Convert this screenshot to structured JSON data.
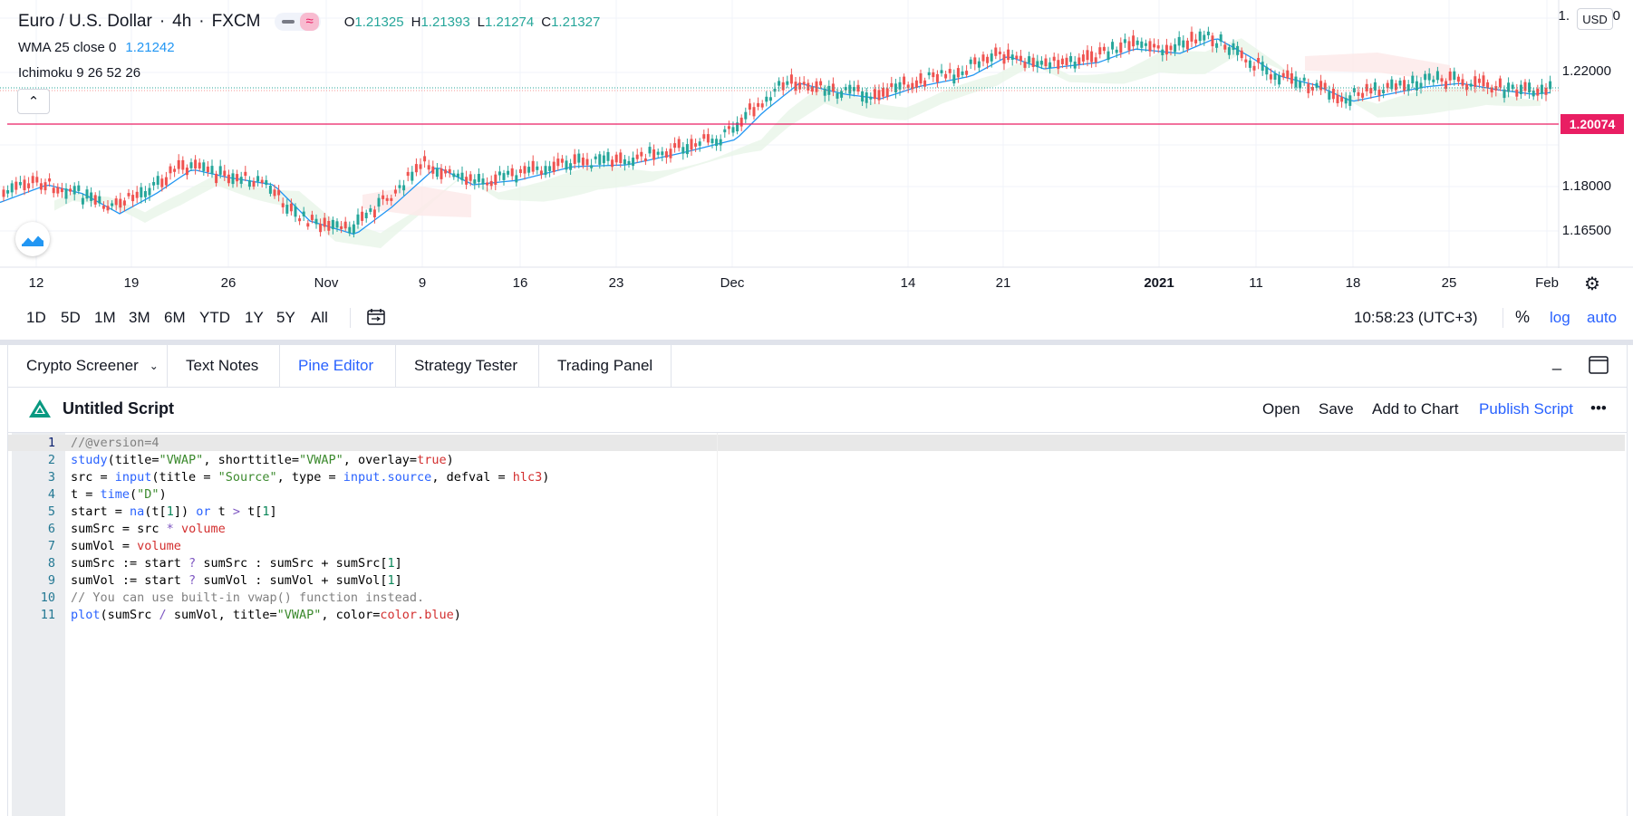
{
  "header": {
    "symbol": "Euro / U.S. Dollar",
    "interval": "4h",
    "exchange": "FXCM",
    "ohlc": [
      {
        "k": "O",
        "v": "1.21325"
      },
      {
        "k": "H",
        "v": "1.21393"
      },
      {
        "k": "L",
        "v": "1.21274"
      },
      {
        "k": "C",
        "v": "1.21327"
      }
    ],
    "indicators": [
      {
        "label": "WMA 25 close 0",
        "value": "1.21242"
      },
      {
        "label": "Ichimoku 9 26 52 26",
        "value": ""
      }
    ],
    "collapse_icon": "chevron-up-icon",
    "tv_logo": "tradingview-logo"
  },
  "price_axis": {
    "currency": "USD",
    "labels": [
      "1.22000",
      "1.18000",
      "1.16500"
    ],
    "top_label_partial": "1.",
    "top_label_end": "0",
    "alert_price": "1.20074",
    "alert_color": "#e91e63"
  },
  "time_axis": {
    "labels": [
      "12",
      "19",
      "26",
      "Nov",
      "9",
      "16",
      "23",
      "Dec",
      "14",
      "21",
      "2021",
      "11",
      "18",
      "25",
      "Feb"
    ],
    "settings_icon": "gear-icon"
  },
  "range_bar": {
    "ranges": [
      "1D",
      "5D",
      "1M",
      "3M",
      "6M",
      "YTD",
      "1Y",
      "5Y",
      "All"
    ],
    "date_range_icon": "calendar-range-icon",
    "clock": "10:58:23 (UTC+3)",
    "percent": "%",
    "log": "log",
    "auto": "auto"
  },
  "tabs": [
    {
      "label": "Crypto Screener",
      "dropdown": true
    },
    {
      "label": "Text Notes"
    },
    {
      "label": "Pine Editor",
      "active": true
    },
    {
      "label": "Strategy Tester"
    },
    {
      "label": "Trading Panel"
    }
  ],
  "window_controls": {
    "minimize": "_",
    "maximize_icon": "maximize-icon"
  },
  "script_bar": {
    "title": "Untitled Script",
    "logo": "pine-script-logo",
    "open": "Open",
    "save": "Save",
    "add_to_chart": "Add to Chart",
    "publish": "Publish Script",
    "more": "•••"
  },
  "code": {
    "lines": [
      [
        [
          "c",
          "//@version=4"
        ]
      ],
      [
        [
          "k",
          "study"
        ],
        [
          "t",
          "(title="
        ],
        [
          "s",
          "\"VWAP\""
        ],
        [
          "t",
          ", shorttitle="
        ],
        [
          "s",
          "\"VWAP\""
        ],
        [
          "t",
          ", overlay="
        ],
        [
          "r",
          "true"
        ],
        [
          "t",
          ")"
        ]
      ],
      [
        [
          "t",
          "src = "
        ],
        [
          "k",
          "input"
        ],
        [
          "t",
          "(title = "
        ],
        [
          "s",
          "\"Source\""
        ],
        [
          "t",
          ", type = "
        ],
        [
          "k",
          "input.source"
        ],
        [
          "t",
          ", defval = "
        ],
        [
          "r",
          "hlc3"
        ],
        [
          "t",
          ")"
        ]
      ],
      [
        [
          "t",
          "t = "
        ],
        [
          "k",
          "time"
        ],
        [
          "t",
          "("
        ],
        [
          "s",
          "\"D\""
        ],
        [
          "t",
          ")"
        ]
      ],
      [
        [
          "t",
          "start = "
        ],
        [
          "k",
          "na"
        ],
        [
          "t",
          "(t["
        ],
        [
          "n",
          "1"
        ],
        [
          "t",
          "]) "
        ],
        [
          "k",
          "or"
        ],
        [
          "t",
          " t "
        ],
        [
          "o",
          ">"
        ],
        [
          "t",
          " t["
        ],
        [
          "n",
          "1"
        ],
        [
          "t",
          "]"
        ]
      ],
      [
        [
          "t",
          "sumSrc = src "
        ],
        [
          "o",
          "*"
        ],
        [
          "t",
          " "
        ],
        [
          "r",
          "volume"
        ]
      ],
      [
        [
          "t",
          "sumVol = "
        ],
        [
          "r",
          "volume"
        ]
      ],
      [
        [
          "t",
          "sumSrc := start "
        ],
        [
          "o",
          "?"
        ],
        [
          "t",
          " sumSrc : sumSrc + sumSrc["
        ],
        [
          "n",
          "1"
        ],
        [
          "t",
          "]"
        ]
      ],
      [
        [
          "t",
          "sumVol := start "
        ],
        [
          "o",
          "?"
        ],
        [
          "t",
          " sumVol : sumVol + sumVol["
        ],
        [
          "n",
          "1"
        ],
        [
          "t",
          "]"
        ]
      ],
      [
        [
          "c",
          "// You can use built-in vwap() function instead."
        ]
      ],
      [
        [
          "k",
          "plot"
        ],
        [
          "t",
          "(sumSrc "
        ],
        [
          "o",
          "/"
        ],
        [
          "t",
          " sumVol, title="
        ],
        [
          "s",
          "\"VWAP\""
        ],
        [
          "t",
          ", color="
        ],
        [
          "r",
          "color.blue"
        ],
        [
          "t",
          ")"
        ]
      ]
    ]
  }
}
